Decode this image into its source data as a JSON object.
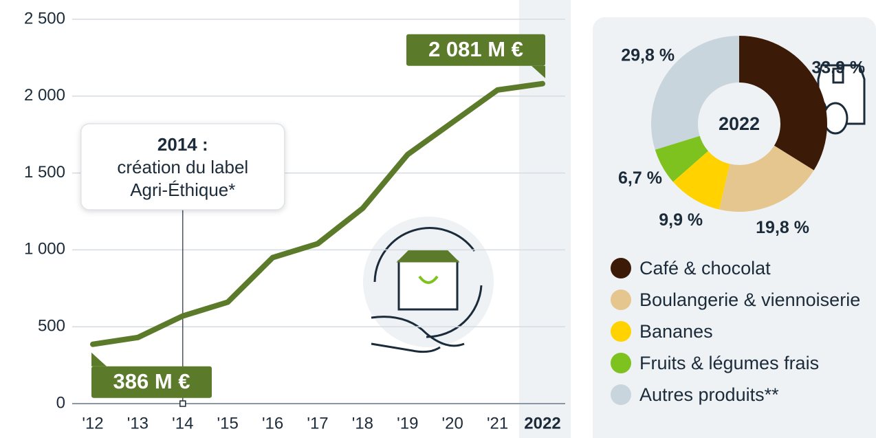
{
  "chart_data": [
    {
      "type": "line",
      "categories": [
        "'12",
        "'13",
        "'14",
        "'15",
        "'16",
        "'17",
        "'18",
        "'19",
        "'20",
        "'21",
        "2022"
      ],
      "values": [
        386,
        430,
        570,
        660,
        950,
        1040,
        1270,
        1620,
        1830,
        2040,
        2081
      ],
      "value_labels": [
        "386 M €",
        null,
        null,
        null,
        null,
        null,
        null,
        null,
        null,
        null,
        "2 081 M €"
      ],
      "color": "#5b7a2a",
      "ylim": [
        0,
        2500
      ],
      "yticks": [
        0,
        500,
        {
          "value": 1000,
          "label": "1 000"
        },
        {
          "value": 1500,
          "label": "1 500"
        },
        {
          "value": 2000,
          "label": "2 000"
        },
        {
          "value": 2500,
          "label": "2 500"
        }
      ],
      "grid": true,
      "annotation": {
        "at": "'14",
        "lines": [
          "2014 :",
          "création du label",
          "Agri-Éthique*"
        ]
      }
    },
    {
      "type": "donut",
      "center_label": "2022",
      "categories": [
        "Café & chocolat",
        "Boulangerie & viennoiserie",
        "Bananes",
        "Fruits & légumes frais",
        "Autres produits**"
      ],
      "values": [
        33.9,
        19.8,
        9.9,
        6.7,
        29.8
      ],
      "value_labels": [
        "33,9 %",
        "19,8 %",
        "9,9 %",
        "6,7 %",
        "29,8 %"
      ],
      "colors": [
        "#3b1a08",
        "#e6c68f",
        "#ffd200",
        "#7dc21e",
        "#c9d5dd"
      ]
    }
  ]
}
